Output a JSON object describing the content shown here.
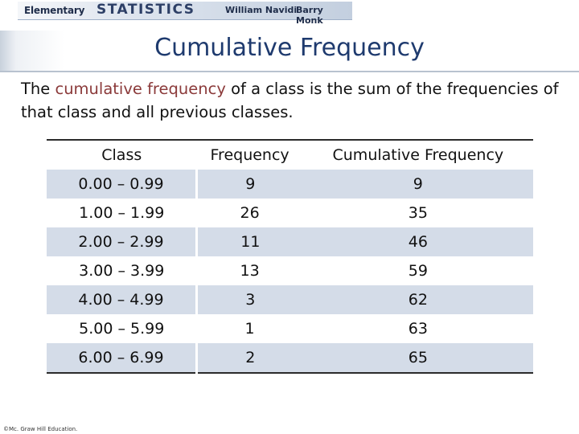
{
  "header": {
    "elementary": "Elementary",
    "statistics": "STATISTICS",
    "author1": "William Navidi",
    "author2": "Barry Monk"
  },
  "slide": {
    "title": "Cumulative Frequency",
    "text_before": "The ",
    "highlight": "cumulative frequency",
    "text_after": " of a class is the sum of the frequencies of that class and all previous classes."
  },
  "table": {
    "headers": [
      "Class",
      "Frequency",
      "Cumulative Frequency"
    ],
    "rows": [
      [
        "0.00 – 0.99",
        "9",
        "9"
      ],
      [
        "1.00 – 1.99",
        "26",
        "35"
      ],
      [
        "2.00 – 2.99",
        "11",
        "46"
      ],
      [
        "3.00 – 3.99",
        "13",
        "59"
      ],
      [
        "4.00 – 4.99",
        "3",
        "62"
      ],
      [
        "5.00 – 5.99",
        "1",
        "63"
      ],
      [
        "6.00 – 6.99",
        "2",
        "65"
      ]
    ]
  },
  "footer": {
    "copyright": "©Mc. Graw Hill Education."
  },
  "colors": {
    "title": "#1e3a6e",
    "highlight": "#8b3a3a",
    "row_shade": "#d4dce8"
  }
}
